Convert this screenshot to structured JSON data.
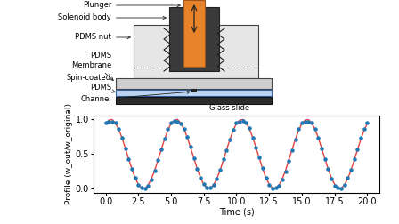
{
  "diagram": {
    "labels": {
      "plunger": "Plunger",
      "solenoid_body": "Solenoid body",
      "nut": "PDMS nut",
      "membrane": "PDMS\nMembrane",
      "spin_coated": "Spin-coated\nPDMS",
      "channel": "Channel",
      "glass_slide": "Glass slide"
    }
  },
  "chart_data": {
    "type": "line",
    "xlabel": "Time (s)",
    "ylabel": "Profile (w_out/w_original)",
    "xlim": [
      -0.9,
      20.9
    ],
    "ylim": [
      -0.06,
      1.06
    ],
    "xticks": [
      0.0,
      2.5,
      5.0,
      7.5,
      10.0,
      12.5,
      15.0,
      17.5,
      20.0
    ],
    "yticks": [
      0.0,
      0.5,
      1.0
    ],
    "x": [
      0.0,
      0.25,
      0.5,
      0.75,
      1.0,
      1.25,
      1.5,
      1.75,
      2.0,
      2.25,
      2.5,
      2.75,
      3.0,
      3.25,
      3.5,
      3.75,
      4.0,
      4.25,
      4.5,
      4.75,
      5.0,
      5.25,
      5.5,
      5.75,
      6.0,
      6.25,
      6.5,
      6.75,
      7.0,
      7.25,
      7.5,
      7.75,
      8.0,
      8.25,
      8.5,
      8.75,
      9.0,
      9.25,
      9.5,
      9.75,
      10.0,
      10.25,
      10.5,
      10.75,
      11.0,
      11.25,
      11.5,
      11.75,
      12.0,
      12.25,
      12.5,
      12.75,
      13.0,
      13.25,
      13.5,
      13.75,
      14.0,
      14.25,
      14.5,
      14.75,
      15.0,
      15.25,
      15.5,
      15.75,
      16.0,
      16.25,
      16.5,
      16.75,
      17.0,
      17.25,
      17.5,
      17.75,
      18.0,
      18.25,
      18.5,
      18.75,
      19.0,
      19.25,
      19.5,
      19.75,
      20.0
    ],
    "series": [
      {
        "type": "scatter",
        "color": "#1f77b4",
        "marker": "o",
        "values": [
          0.95,
          0.97,
          0.97,
          0.95,
          0.87,
          0.74,
          0.58,
          0.43,
          0.28,
          0.15,
          0.05,
          0.01,
          0.0,
          0.04,
          0.13,
          0.26,
          0.41,
          0.57,
          0.72,
          0.86,
          0.96,
          0.98,
          0.97,
          0.94,
          0.86,
          0.75,
          0.6,
          0.44,
          0.29,
          0.16,
          0.06,
          0.01,
          0.01,
          0.05,
          0.14,
          0.27,
          0.42,
          0.56,
          0.71,
          0.85,
          0.95,
          0.97,
          0.98,
          0.95,
          0.88,
          0.73,
          0.59,
          0.45,
          0.3,
          0.15,
          0.05,
          0.0,
          0.01,
          0.04,
          0.13,
          0.25,
          0.4,
          0.55,
          0.71,
          0.86,
          0.96,
          0.97,
          0.97,
          0.96,
          0.87,
          0.74,
          0.58,
          0.43,
          0.28,
          0.14,
          0.04,
          0.01,
          0.0,
          0.05,
          0.15,
          0.27,
          0.42,
          0.57,
          0.73,
          0.87,
          0.95
        ]
      },
      {
        "type": "line",
        "color": "#e8413c",
        "line_style": "solid",
        "values": [
          0.94,
          0.99,
          1.0,
          0.95,
          0.86,
          0.74,
          0.59,
          0.44,
          0.29,
          0.16,
          0.06,
          0.01,
          0.0,
          0.05,
          0.14,
          0.26,
          0.41,
          0.56,
          0.71,
          0.84,
          0.94,
          0.99,
          1.0,
          0.95,
          0.86,
          0.74,
          0.59,
          0.44,
          0.29,
          0.16,
          0.06,
          0.01,
          0.0,
          0.05,
          0.14,
          0.26,
          0.41,
          0.56,
          0.71,
          0.84,
          0.94,
          0.99,
          1.0,
          0.95,
          0.86,
          0.74,
          0.59,
          0.44,
          0.29,
          0.16,
          0.06,
          0.01,
          0.0,
          0.05,
          0.14,
          0.26,
          0.41,
          0.56,
          0.71,
          0.84,
          0.94,
          0.99,
          1.0,
          0.95,
          0.86,
          0.74,
          0.59,
          0.44,
          0.29,
          0.16,
          0.06,
          0.01,
          0.0,
          0.05,
          0.14,
          0.26,
          0.41,
          0.56,
          0.71,
          0.84,
          0.94
        ]
      }
    ]
  }
}
